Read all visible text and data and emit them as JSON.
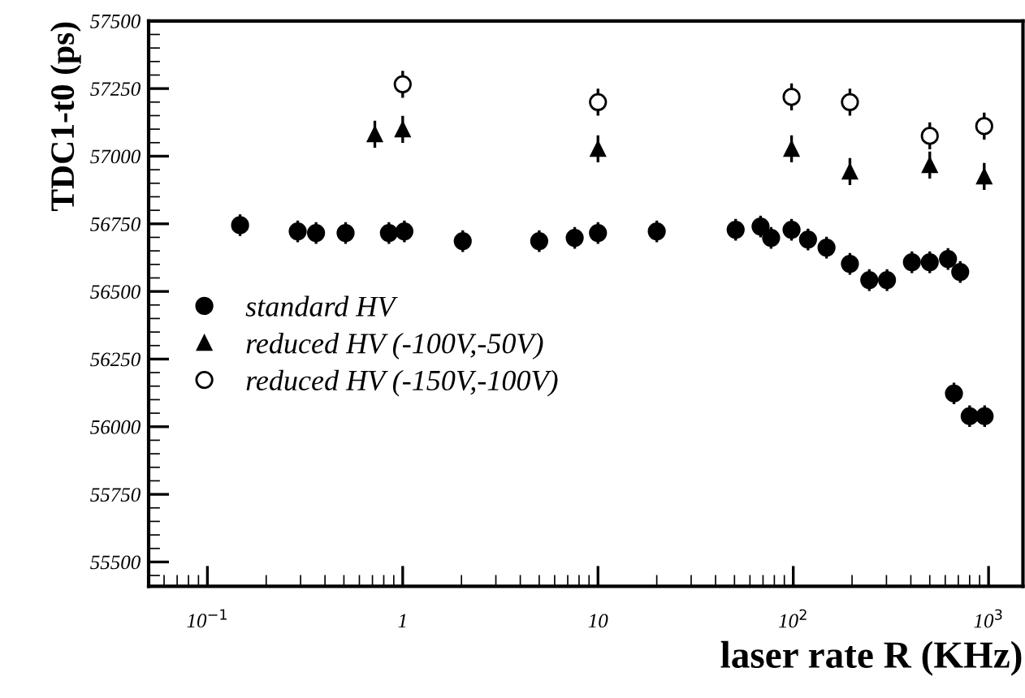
{
  "chart_data": {
    "type": "scatter",
    "xlabel": "laser rate R (KHz)",
    "ylabel": "TDC1-t0 (ps)",
    "log": "x",
    "xlim": [
      0.05,
      1500
    ],
    "xticks": [
      {
        "value": 0.1,
        "label": "10$^{−1}$"
      },
      1,
      10,
      {
        "value": 100,
        "label": "10$^{2}$"
      },
      {
        "value": 1000,
        "label": "10$^{3}$"
      }
    ],
    "ylim": [
      55410,
      57500
    ],
    "yticks": [
      55500,
      55750,
      56000,
      56250,
      56500,
      56750,
      57000,
      57250,
      57500
    ],
    "grid": false,
    "legend": "center left",
    "series": [
      {
        "name": "standard HV",
        "color": "#000000",
        "marker": "circle",
        "x": [
          0.147,
          0.29,
          0.36,
          0.51,
          0.85,
          1.02,
          2.03,
          5.0,
          7.6,
          10,
          20,
          50.7,
          68,
          77,
          98,
          119,
          148,
          195,
          245,
          302,
          405,
          500,
          620,
          716,
          665,
          800,
          955
        ],
        "values": [
          56745,
          56722,
          56716,
          56716,
          56716,
          56722,
          56686,
          56686,
          56698,
          56716,
          56722,
          56728,
          56740,
          56698,
          56728,
          56692,
          56662,
          56602,
          56542,
          56542,
          56608,
          56608,
          56620,
          56572,
          56123,
          56039,
          56039
        ],
        "errors": [
          40,
          40,
          40,
          40,
          40,
          40,
          40,
          40,
          40,
          40,
          40,
          40,
          40,
          40,
          40,
          40,
          40,
          40,
          40,
          40,
          40,
          40,
          40,
          40,
          40,
          40,
          40
        ]
      },
      {
        "name": "reduced HV (-100V,-50V)",
        "color": "#000000",
        "marker": "triangle",
        "x": [
          0.72,
          1.0,
          10,
          98,
          195,
          500,
          950
        ],
        "values": [
          57081,
          57099,
          57027,
          57027,
          56943,
          56967,
          56925
        ],
        "errors": [
          50,
          50,
          50,
          50,
          50,
          50,
          50
        ]
      },
      {
        "name": "reduced HV (-150V,-100V)",
        "color": "#000000",
        "marker": "circle",
        "x": [
          1.0,
          10,
          98,
          195,
          500,
          950
        ],
        "values": [
          57266,
          57200,
          57219,
          57200,
          57075,
          57111
        ],
        "errors": [
          50,
          50,
          50,
          50,
          50,
          50
        ]
      }
    ]
  }
}
